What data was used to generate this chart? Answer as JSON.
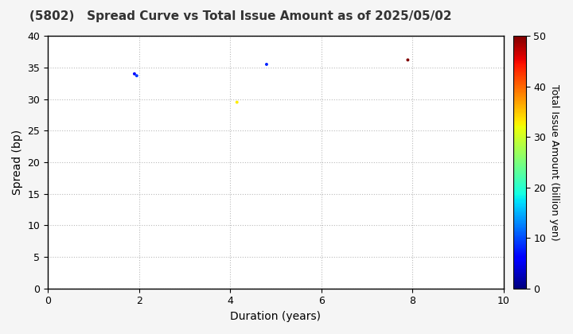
{
  "title": "(5802)   Spread Curve vs Total Issue Amount as of 2025/05/02",
  "xlabel": "Duration (years)",
  "ylabel": "Spread (bp)",
  "colorbar_label": "Total Issue Amount (billion yen)",
  "xlim": [
    0,
    10
  ],
  "ylim": [
    0,
    40
  ],
  "xticks": [
    0,
    2,
    4,
    6,
    8,
    10
  ],
  "yticks": [
    0,
    5,
    10,
    15,
    20,
    25,
    30,
    35,
    40
  ],
  "colorbar_min": 0,
  "colorbar_max": 50,
  "colorbar_ticks": [
    0,
    10,
    20,
    30,
    40,
    50
  ],
  "points": [
    {
      "duration": 1.9,
      "spread": 34.0,
      "amount": 6
    },
    {
      "duration": 1.95,
      "spread": 33.7,
      "amount": 9
    },
    {
      "duration": 4.15,
      "spread": 29.5,
      "amount": 33
    },
    {
      "duration": 4.8,
      "spread": 35.5,
      "amount": 8
    },
    {
      "duration": 7.9,
      "spread": 36.2,
      "amount": 50
    }
  ],
  "background_color": "#f5f5f5",
  "plot_background": "#ffffff",
  "grid_color": "#bbbbbb",
  "marker_size": 8,
  "title_fontsize": 11,
  "axis_fontsize": 10,
  "tick_fontsize": 9,
  "colorbar_tick_fontsize": 9,
  "colorbar_label_fontsize": 9
}
